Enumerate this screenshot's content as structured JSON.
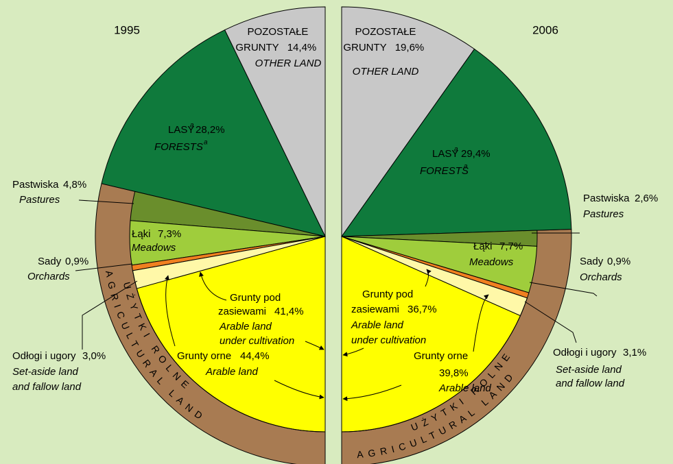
{
  "chart_data": [
    {
      "type": "half-pie",
      "side": "left",
      "title": "1995",
      "ring_label": [
        "UŻYTKI ROLNE",
        "AGRICULTURAL LAND"
      ],
      "ring_color": "#a87b52",
      "footnote_marker": "a",
      "categories": [
        {
          "name": [
            "POZOSTAŁE",
            "GRUNTY"
          ],
          "english": [
            "OTHER LAND"
          ]
        },
        {
          "name": [
            "LASY"
          ],
          "english": [
            "FORESTS"
          ]
        },
        {
          "name": [
            "Pastwiska"
          ],
          "english": [
            "Pastures"
          ]
        },
        {
          "name": [
            "Łąki"
          ],
          "english": [
            "Meadows"
          ]
        },
        {
          "name": [
            "Sady"
          ],
          "english": [
            "Orchards"
          ]
        },
        {
          "name": [
            "Odłogi i ugory"
          ],
          "english": [
            "Set-aside land",
            "and fallow land"
          ]
        },
        {
          "name": [
            "Grunty pod",
            "zasiewami"
          ],
          "english": [
            "Arable land",
            "under cultivation"
          ]
        }
      ],
      "values": [
        14.4,
        28.2,
        4.8,
        7.3,
        0.9,
        3.0,
        41.4
      ],
      "value_labels": [
        "14,4%",
        "28,2%",
        "4,8%",
        "7,3%",
        "0,9%",
        "3,0%",
        "41,4%"
      ],
      "colors": [
        "#c8c8c8",
        "#0f7a3c",
        "#6a8e2c",
        "#9fcd3c",
        "#f08020",
        "#fff8a8",
        "#ffff00"
      ],
      "group": {
        "name": "Grunty orne",
        "english": "Arable land",
        "value": 44.4,
        "value_label": "44,4%"
      }
    },
    {
      "type": "half-pie",
      "side": "right",
      "title": "2006",
      "ring_label": [
        "UŻYTKI ROLNE",
        "AGRICULTURAL LAND"
      ],
      "ring_color": "#a87b52",
      "footnote_marker": "a",
      "categories": [
        {
          "name": [
            "POZOSTAŁE",
            "GRUNTY"
          ],
          "english": [
            "OTHER LAND"
          ]
        },
        {
          "name": [
            "LASY"
          ],
          "english": [
            "FORESTS"
          ]
        },
        {
          "name": [
            "Pastwiska"
          ],
          "english": [
            "Pastures"
          ]
        },
        {
          "name": [
            "Łąki"
          ],
          "english": [
            "Meadows"
          ]
        },
        {
          "name": [
            "Sady"
          ],
          "english": [
            "Orchards"
          ]
        },
        {
          "name": [
            "Odłogi i ugory"
          ],
          "english": [
            "Set-aside land",
            "and fallow land"
          ]
        },
        {
          "name": [
            "Grunty pod",
            "zasiewami"
          ],
          "english": [
            "Arable land",
            "under cultivation"
          ]
        }
      ],
      "values": [
        19.6,
        29.4,
        2.6,
        7.7,
        0.9,
        3.1,
        36.7
      ],
      "value_labels": [
        "19,6%",
        "29,4%",
        "2,6%",
        "7,7%",
        "0,9%",
        "3,1%",
        "36,7%"
      ],
      "colors": [
        "#c8c8c8",
        "#0f7a3c",
        "#6a8e2c",
        "#9fcd3c",
        "#f08020",
        "#fff8a8",
        "#ffff00"
      ],
      "group": {
        "name": "Grunty orne",
        "english": "Arable land",
        "value": 39.8,
        "value_label": "39,8%"
      }
    }
  ]
}
